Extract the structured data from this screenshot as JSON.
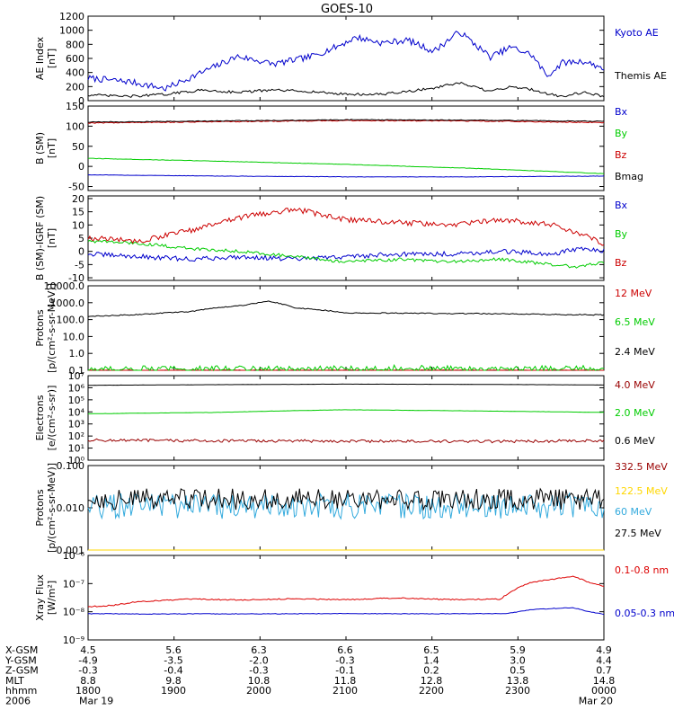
{
  "title": "GOES-10",
  "chart_data": [
    {
      "type": "line",
      "ylabel": [
        "AE Index",
        "[nT]"
      ],
      "scale": "linear",
      "ylim": [
        0,
        1200
      ],
      "yticks": [
        0,
        200,
        400,
        600,
        800,
        1000,
        1200
      ],
      "yticklabels": [
        "0",
        "200",
        "400",
        "600",
        "800",
        "1000",
        "1200"
      ],
      "x": [
        0,
        0.08,
        0.15,
        0.22,
        0.29,
        0.36,
        0.43,
        0.48,
        0.52,
        0.57,
        0.62,
        0.67,
        0.72,
        0.78,
        0.82,
        0.86,
        0.89,
        0.92,
        0.96,
        1.0
      ],
      "series": [
        {
          "name": "Kyoto AE",
          "color": "#0000cc",
          "noise": 45,
          "values": [
            320,
            270,
            170,
            400,
            630,
            520,
            620,
            760,
            900,
            820,
            860,
            700,
            980,
            620,
            760,
            650,
            350,
            540,
            560,
            460
          ]
        },
        {
          "name": "Themis AE",
          "color": "#000000",
          "noise": 18,
          "values": [
            80,
            60,
            90,
            150,
            120,
            150,
            130,
            100,
            90,
            90,
            130,
            180,
            250,
            130,
            200,
            160,
            100,
            60,
            120,
            60
          ]
        }
      ]
    },
    {
      "type": "line",
      "ylabel": [
        "B (SM)",
        "[nT]"
      ],
      "scale": "linear",
      "ylim": [
        -60,
        150
      ],
      "yticks": [
        -50,
        0,
        50,
        100,
        150
      ],
      "yticklabels": [
        "-50",
        "0",
        "50",
        "100",
        "150"
      ],
      "x": [
        0,
        0.25,
        0.5,
        0.75,
        1.0
      ],
      "series": [
        {
          "name": "Bx",
          "color": "#0000cc",
          "noise": 0.5,
          "values": [
            -21,
            -24,
            -26,
            -26,
            -24
          ]
        },
        {
          "name": "By",
          "color": "#00cc00",
          "noise": 0.5,
          "values": [
            20,
            13,
            5,
            -5,
            -18
          ]
        },
        {
          "name": "Bz",
          "color": "#cc0000",
          "noise": 1.2,
          "values": [
            108,
            111,
            114,
            113,
            109
          ]
        },
        {
          "name": "Bmag",
          "color": "#000000",
          "noise": 1.0,
          "values": [
            110,
            113,
            116,
            115,
            112
          ]
        }
      ]
    },
    {
      "type": "line",
      "ylabel": [
        "B (SM)-IGRF (SM)",
        "[nT]"
      ],
      "scale": "linear",
      "ylim": [
        -11,
        21
      ],
      "yticks": [
        -10,
        -5,
        0,
        5,
        10,
        15,
        20
      ],
      "yticklabels": [
        "-10",
        "-5",
        "0",
        "5",
        "10",
        "15",
        "20"
      ],
      "x": [
        0,
        0.1,
        0.2,
        0.3,
        0.4,
        0.5,
        0.6,
        0.7,
        0.8,
        0.9,
        0.95,
        1.0
      ],
      "series": [
        {
          "name": "Bx",
          "color": "#0000cc",
          "noise": 0.9,
          "values": [
            -1,
            -2,
            -3,
            -2,
            -3,
            -2,
            -1,
            -1,
            0,
            -1,
            1,
            0
          ]
        },
        {
          "name": "By",
          "color": "#00cc00",
          "noise": 0.6,
          "values": [
            4,
            3,
            1,
            0,
            -2,
            -4,
            -3,
            -4,
            -3,
            -5,
            -6,
            -4
          ]
        },
        {
          "name": "Bz",
          "color": "#cc0000",
          "noise": 1.0,
          "values": [
            5,
            4,
            8,
            13,
            16,
            12,
            11,
            10,
            12,
            10,
            7,
            3
          ]
        }
      ]
    },
    {
      "type": "line",
      "ylabel": [
        "Protons",
        "[p/(cm²-s-sr-MeV)]"
      ],
      "scale": "log",
      "ylim": [
        0.1,
        10000
      ],
      "yticks": [
        0.1,
        1,
        10,
        100,
        1000,
        10000
      ],
      "yticklabels": [
        "0.1",
        "1.0",
        "10.0",
        "100.0",
        "1000.0",
        "10000.0"
      ],
      "x": [
        0,
        0.1,
        0.2,
        0.3,
        0.35,
        0.4,
        0.5,
        0.6,
        0.7,
        0.8,
        0.9,
        1.0
      ],
      "series": [
        {
          "name": "12 MeV",
          "color": "#cc0000",
          "noise": 0.02,
          "values": [
            0.1,
            0.1,
            0.1,
            0.1,
            0.1,
            0.1,
            0.1,
            0.1,
            0.1,
            0.1,
            0.1,
            0.1
          ]
        },
        {
          "name": "6.5 MeV",
          "color": "#00cc00",
          "noise": 0.2,
          "values": [
            0.11,
            0.12,
            0.11,
            0.13,
            0.12,
            0.11,
            0.12,
            0.13,
            0.12,
            0.11,
            0.12,
            0.12
          ]
        },
        {
          "name": "2.4 MeV",
          "color": "#000000",
          "noise": 0.03,
          "values": [
            150,
            200,
            300,
            700,
            1200,
            500,
            250,
            240,
            230,
            220,
            200,
            190
          ]
        }
      ]
    },
    {
      "type": "line",
      "ylabel": [
        "Electrons",
        "[e/(cm²-s-sr)]"
      ],
      "scale": "log",
      "ylim": [
        1,
        10000000
      ],
      "yticks": [
        1,
        10,
        100,
        1000,
        10000,
        100000,
        1000000,
        10000000
      ],
      "yticklabels": [
        "10⁰",
        "10¹",
        "10²",
        "10³",
        "10⁴",
        "10⁵",
        "10⁶",
        "10⁷"
      ],
      "x": [
        0,
        0.25,
        0.5,
        0.75,
        1.0
      ],
      "series": [
        {
          "name": "4.0 MeV",
          "color": "#990000",
          "noise": 0.12,
          "values": [
            45,
            40,
            38,
            35,
            40
          ]
        },
        {
          "name": "2.0 MeV",
          "color": "#00cc00",
          "noise": 0.01,
          "values": [
            7000,
            9000,
            15000,
            12000,
            9000
          ]
        },
        {
          "name": "0.6 MeV",
          "color": "#000000",
          "noise": 0.005,
          "values": [
            1600000,
            1800000,
            2000000,
            1900000,
            1700000
          ]
        }
      ]
    },
    {
      "type": "line",
      "ylabel": [
        "Protons",
        "[p/(cm²-s-sr-MeV)]"
      ],
      "scale": "log",
      "ylim": [
        0.001,
        0.1
      ],
      "yticks": [
        0.001,
        0.01,
        0.1
      ],
      "yticklabels": [
        "0.001",
        "0.010",
        "0.100"
      ],
      "x": [
        0,
        0.5,
        1.0
      ],
      "series": [
        {
          "name": "332.5 MeV",
          "color": "#990000",
          "noise": 0.0,
          "values": [
            0.0,
            0.0,
            0.0
          ]
        },
        {
          "name": "122.5 MeV",
          "color": "#ffd700",
          "noise": 0.0,
          "values": [
            0.0,
            0.0,
            0.0
          ]
        },
        {
          "name": "60 MeV",
          "color": "#33aadd",
          "noise": 0.3,
          "values": [
            0.011,
            0.011,
            0.011
          ]
        },
        {
          "name": "27.5 MeV",
          "color": "#000000",
          "noise": 0.25,
          "values": [
            0.016,
            0.016,
            0.016
          ]
        }
      ]
    },
    {
      "type": "line",
      "ylabel": [
        "Xray Flux",
        "[W/m²]"
      ],
      "scale": "log",
      "ylim": [
        1e-09,
        1e-06
      ],
      "yticks": [
        1e-09,
        1e-08,
        1e-07,
        1e-06
      ],
      "yticklabels": [
        "10⁻⁹",
        "10⁻⁸",
        "10⁻⁷",
        "10⁻⁶"
      ],
      "x": [
        0,
        0.05,
        0.1,
        0.2,
        0.3,
        0.4,
        0.5,
        0.6,
        0.7,
        0.8,
        0.82,
        0.86,
        0.9,
        0.94,
        0.97,
        1.0
      ],
      "series": [
        {
          "name": "0.1-0.8 nm",
          "color": "#dd0000",
          "noise": 0.02,
          "values": [
            1.5e-08,
            1.7e-08,
            2.3e-08,
            2.8e-08,
            2.6e-08,
            2.9e-08,
            2.7e-08,
            3.1e-08,
            2.7e-08,
            2.8e-08,
            5e-08,
            1.1e-07,
            1.4e-07,
            1.8e-07,
            1.1e-07,
            8e-08
          ]
        },
        {
          "name": "0.05-0.3 nm",
          "color": "#0000cc",
          "noise": 0.01,
          "values": [
            8.5e-09,
            8.5e-09,
            8.3e-09,
            8.4e-09,
            8.4e-09,
            8.5e-09,
            8.6e-09,
            8.5e-09,
            8.5e-09,
            8.6e-09,
            9e-09,
            1.2e-08,
            1.3e-08,
            1.4e-08,
            1e-08,
            8e-09
          ]
        }
      ]
    }
  ],
  "footer": {
    "rows": [
      {
        "label": "X-GSM",
        "values": [
          "4.5",
          "5.6",
          "6.3",
          "6.6",
          "6.5",
          "5.9",
          "4.9"
        ]
      },
      {
        "label": "Y-GSM",
        "values": [
          "-4.9",
          "-3.5",
          "-2.0",
          "-0.3",
          "1.4",
          "3.0",
          "4.4"
        ]
      },
      {
        "label": "Z-GSM",
        "values": [
          "-0.3",
          "-0.4",
          "-0.3",
          "-0.1",
          "0.2",
          "0.5",
          "0.7"
        ]
      },
      {
        "label": "MLT",
        "values": [
          "8.8",
          "9.8",
          "10.8",
          "11.8",
          "12.8",
          "13.8",
          "14.8"
        ]
      },
      {
        "label": "hhmm",
        "values": [
          "1800",
          "1900",
          "2000",
          "2100",
          "2200",
          "2300",
          "0000"
        ]
      },
      {
        "label": "2006",
        "values": [
          "Mar 19",
          "",
          "",
          "",
          "",
          "",
          "Mar 20"
        ]
      }
    ]
  }
}
